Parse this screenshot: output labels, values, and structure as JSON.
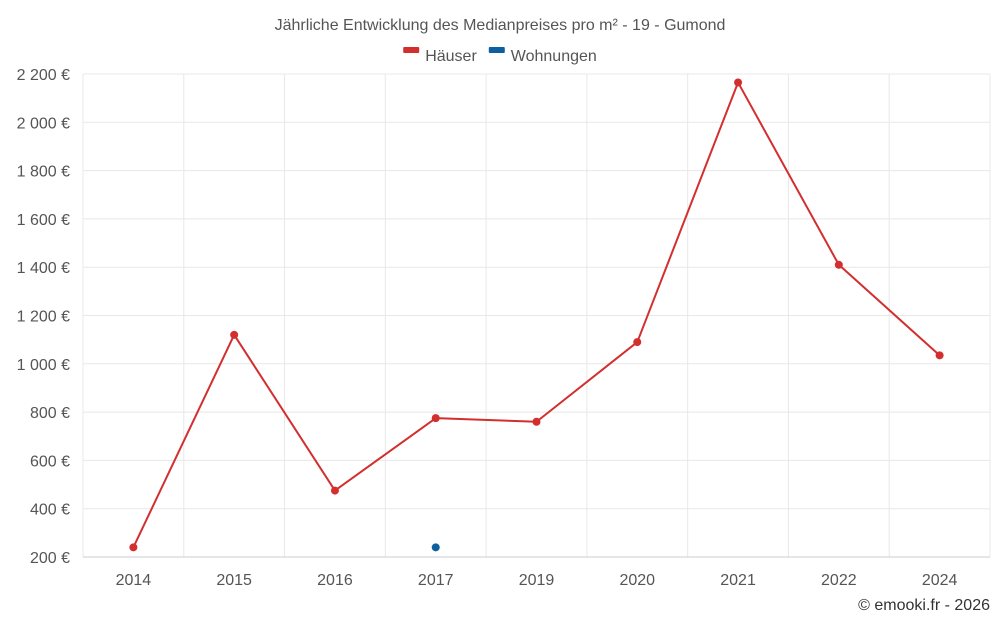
{
  "chart_data": {
    "type": "line",
    "title": "Jährliche Entwicklung des Medianpreises pro m² - 19 - Gumond",
    "categories": [
      "2014",
      "2015",
      "2016",
      "2017",
      "2019",
      "2020",
      "2021",
      "2022",
      "2024"
    ],
    "series": [
      {
        "name": "Häuser",
        "color": "#d32f2f",
        "values": [
          240,
          1120,
          475,
          775,
          760,
          1090,
          2165,
          1410,
          1035
        ]
      },
      {
        "name": "Wohnungen",
        "color": "#0d5fa0",
        "values": [
          null,
          null,
          null,
          240,
          null,
          null,
          null,
          null,
          null
        ]
      }
    ],
    "y_ticks": [
      "200 €",
      "400 €",
      "600 €",
      "800 €",
      "1 000 €",
      "1 200 €",
      "1 400 €",
      "1 600 €",
      "1 800 €",
      "2 000 €",
      "2 200 €"
    ],
    "y_tick_values": [
      200,
      400,
      600,
      800,
      1000,
      1200,
      1400,
      1600,
      1800,
      2000,
      2200
    ],
    "ylim": [
      200,
      2200
    ],
    "grid": true,
    "legend_position": "top-center"
  },
  "credit": "© emooki.fr - 2026"
}
